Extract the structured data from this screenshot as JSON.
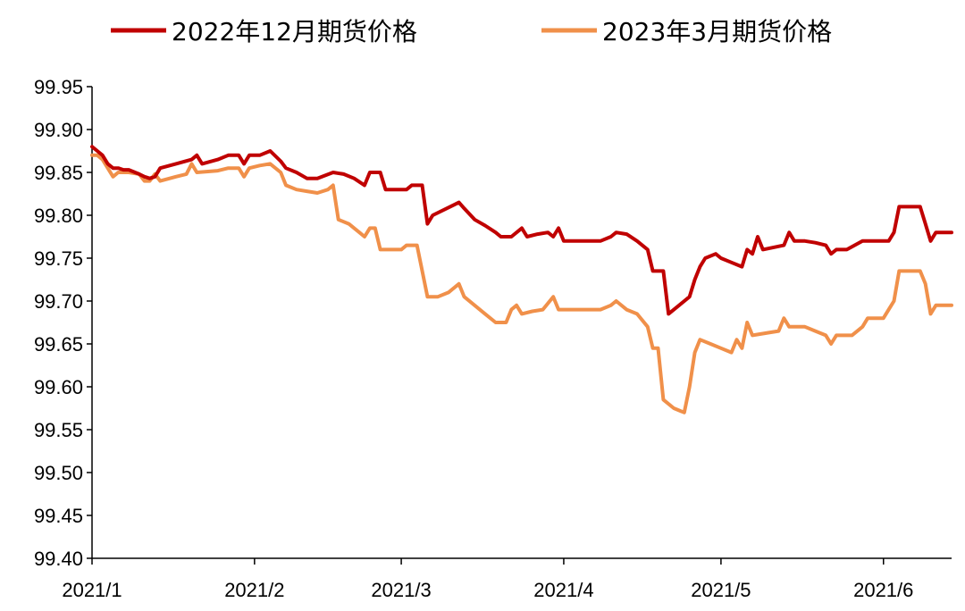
{
  "chart_data": {
    "type": "line",
    "title": "",
    "xlabel": "",
    "ylabel": "",
    "ylim": [
      99.4,
      99.95
    ],
    "y_ticks": [
      "99.40",
      "99.45",
      "99.50",
      "99.55",
      "99.60",
      "99.65",
      "99.70",
      "99.75",
      "99.80",
      "99.85",
      "99.90",
      "99.95"
    ],
    "x_ticks": [
      "2021/1",
      "2021/2",
      "2021/3",
      "2021/4",
      "2021/5",
      "2021/6"
    ],
    "xlim": [
      "2021-01-01",
      "2021-06-14"
    ],
    "grid": false,
    "legend_position": "top",
    "series": [
      {
        "name": "2022年12月期货价格",
        "color": "#c00000",
        "points": [
          [
            "2021-01-01",
            99.88
          ],
          [
            "2021-01-02",
            99.875
          ],
          [
            "2021-01-03",
            99.87
          ],
          [
            "2021-01-04",
            99.86
          ],
          [
            "2021-01-05",
            99.855
          ],
          [
            "2021-01-06",
            99.855
          ],
          [
            "2021-01-07",
            99.853
          ],
          [
            "2021-01-08",
            99.853
          ],
          [
            "2021-01-10",
            99.848
          ],
          [
            "2021-01-11",
            99.845
          ],
          [
            "2021-01-12",
            99.843
          ],
          [
            "2021-01-13",
            99.845
          ],
          [
            "2021-01-14",
            99.855
          ],
          [
            "2021-01-17",
            99.86
          ],
          [
            "2021-01-20",
            99.865
          ],
          [
            "2021-01-21",
            99.87
          ],
          [
            "2021-01-22",
            99.86
          ],
          [
            "2021-01-25",
            99.865
          ],
          [
            "2021-01-27",
            99.87
          ],
          [
            "2021-01-29",
            99.87
          ],
          [
            "2021-01-30",
            99.86
          ],
          [
            "2021-01-31",
            99.87
          ],
          [
            "2021-02-02",
            99.87
          ],
          [
            "2021-02-04",
            99.875
          ],
          [
            "2021-02-06",
            99.863
          ],
          [
            "2021-02-07",
            99.855
          ],
          [
            "2021-02-09",
            99.85
          ],
          [
            "2021-02-11",
            99.843
          ],
          [
            "2021-02-13",
            99.843
          ],
          [
            "2021-02-16",
            99.85
          ],
          [
            "2021-02-18",
            99.848
          ],
          [
            "2021-02-20",
            99.843
          ],
          [
            "2021-02-22",
            99.835
          ],
          [
            "2021-02-23",
            99.85
          ],
          [
            "2021-02-25",
            99.85
          ],
          [
            "2021-02-26",
            99.83
          ],
          [
            "2021-03-01",
            99.83
          ],
          [
            "2021-03-02",
            99.83
          ],
          [
            "2021-03-03",
            99.835
          ],
          [
            "2021-03-05",
            99.835
          ],
          [
            "2021-03-06",
            99.79
          ],
          [
            "2021-03-07",
            99.8
          ],
          [
            "2021-03-12",
            99.815
          ],
          [
            "2021-03-13",
            99.808
          ],
          [
            "2021-03-15",
            99.795
          ],
          [
            "2021-03-17",
            99.788
          ],
          [
            "2021-03-19",
            99.78
          ],
          [
            "2021-03-20",
            99.775
          ],
          [
            "2021-03-22",
            99.775
          ],
          [
            "2021-03-24",
            99.785
          ],
          [
            "2021-03-25",
            99.775
          ],
          [
            "2021-03-27",
            99.778
          ],
          [
            "2021-03-29",
            99.78
          ],
          [
            "2021-03-30",
            99.775
          ],
          [
            "2021-03-31",
            99.785
          ],
          [
            "2021-04-01",
            99.77
          ],
          [
            "2021-04-02",
            99.77
          ],
          [
            "2021-04-06",
            99.77
          ],
          [
            "2021-04-08",
            99.77
          ],
          [
            "2021-04-10",
            99.775
          ],
          [
            "2021-04-11",
            99.78
          ],
          [
            "2021-04-13",
            99.778
          ],
          [
            "2021-04-15",
            99.77
          ],
          [
            "2021-04-17",
            99.76
          ],
          [
            "2021-04-18",
            99.735
          ],
          [
            "2021-04-19",
            99.735
          ],
          [
            "2021-04-20",
            99.735
          ],
          [
            "2021-04-21",
            99.685
          ],
          [
            "2021-04-23",
            99.695
          ],
          [
            "2021-04-25",
            99.705
          ],
          [
            "2021-04-26",
            99.725
          ],
          [
            "2021-04-27",
            99.74
          ],
          [
            "2021-04-28",
            99.75
          ],
          [
            "2021-04-30",
            99.755
          ],
          [
            "2021-05-01",
            99.75
          ],
          [
            "2021-05-03",
            99.745
          ],
          [
            "2021-05-05",
            99.74
          ],
          [
            "2021-05-06",
            99.76
          ],
          [
            "2021-05-07",
            99.755
          ],
          [
            "2021-05-08",
            99.775
          ],
          [
            "2021-05-09",
            99.76
          ],
          [
            "2021-05-13",
            99.765
          ],
          [
            "2021-05-14",
            99.78
          ],
          [
            "2021-05-15",
            99.77
          ],
          [
            "2021-05-17",
            99.77
          ],
          [
            "2021-05-19",
            99.768
          ],
          [
            "2021-05-21",
            99.765
          ],
          [
            "2021-05-22",
            99.755
          ],
          [
            "2021-05-23",
            99.76
          ],
          [
            "2021-05-25",
            99.76
          ],
          [
            "2021-05-28",
            99.77
          ],
          [
            "2021-05-31",
            99.77
          ],
          [
            "2021-06-02",
            99.77
          ],
          [
            "2021-06-03",
            99.78
          ],
          [
            "2021-06-04",
            99.81
          ],
          [
            "2021-06-06",
            99.81
          ],
          [
            "2021-06-08",
            99.81
          ],
          [
            "2021-06-09",
            99.79
          ],
          [
            "2021-06-10",
            99.77
          ],
          [
            "2021-06-11",
            99.78
          ],
          [
            "2021-06-12",
            99.78
          ],
          [
            "2021-06-14",
            99.78
          ]
        ]
      },
      {
        "name": "2023年3月期货价格",
        "color": "#f0904a",
        "points": [
          [
            "2021-01-01",
            99.87
          ],
          [
            "2021-01-02",
            99.87
          ],
          [
            "2021-01-03",
            99.865
          ],
          [
            "2021-01-04",
            99.855
          ],
          [
            "2021-01-05",
            99.845
          ],
          [
            "2021-01-06",
            99.85
          ],
          [
            "2021-01-08",
            99.85
          ],
          [
            "2021-01-10",
            99.848
          ],
          [
            "2021-01-11",
            99.84
          ],
          [
            "2021-01-12",
            99.84
          ],
          [
            "2021-01-13",
            99.848
          ],
          [
            "2021-01-14",
            99.84
          ],
          [
            "2021-01-17",
            99.845
          ],
          [
            "2021-01-19",
            99.848
          ],
          [
            "2021-01-20",
            99.86
          ],
          [
            "2021-01-21",
            99.85
          ],
          [
            "2021-01-25",
            99.852
          ],
          [
            "2021-01-27",
            99.855
          ],
          [
            "2021-01-29",
            99.855
          ],
          [
            "2021-01-30",
            99.845
          ],
          [
            "2021-01-31",
            99.855
          ],
          [
            "2021-02-02",
            99.858
          ],
          [
            "2021-02-04",
            99.86
          ],
          [
            "2021-02-06",
            99.85
          ],
          [
            "2021-02-07",
            99.835
          ],
          [
            "2021-02-09",
            99.83
          ],
          [
            "2021-02-11",
            99.828
          ],
          [
            "2021-02-13",
            99.826
          ],
          [
            "2021-02-15",
            99.83
          ],
          [
            "2021-02-16",
            99.835
          ],
          [
            "2021-02-17",
            99.795
          ],
          [
            "2021-02-19",
            99.79
          ],
          [
            "2021-02-21",
            99.78
          ],
          [
            "2021-02-22",
            99.775
          ],
          [
            "2021-02-23",
            99.785
          ],
          [
            "2021-02-24",
            99.785
          ],
          [
            "2021-02-25",
            99.76
          ],
          [
            "2021-02-27",
            99.76
          ],
          [
            "2021-03-01",
            99.76
          ],
          [
            "2021-03-02",
            99.765
          ],
          [
            "2021-03-04",
            99.765
          ],
          [
            "2021-03-06",
            99.705
          ],
          [
            "2021-03-08",
            99.705
          ],
          [
            "2021-03-10",
            99.71
          ],
          [
            "2021-03-12",
            99.72
          ],
          [
            "2021-03-13",
            99.705
          ],
          [
            "2021-03-15",
            99.695
          ],
          [
            "2021-03-17",
            99.685
          ],
          [
            "2021-03-19",
            99.675
          ],
          [
            "2021-03-21",
            99.675
          ],
          [
            "2021-03-22",
            99.69
          ],
          [
            "2021-03-23",
            99.695
          ],
          [
            "2021-03-24",
            99.685
          ],
          [
            "2021-03-26",
            99.688
          ],
          [
            "2021-03-28",
            99.69
          ],
          [
            "2021-03-30",
            99.705
          ],
          [
            "2021-03-31",
            99.69
          ],
          [
            "2021-04-02",
            99.69
          ],
          [
            "2021-04-06",
            99.69
          ],
          [
            "2021-04-08",
            99.69
          ],
          [
            "2021-04-10",
            99.695
          ],
          [
            "2021-04-11",
            99.7
          ],
          [
            "2021-04-13",
            99.69
          ],
          [
            "2021-04-15",
            99.685
          ],
          [
            "2021-04-17",
            99.67
          ],
          [
            "2021-04-18",
            99.645
          ],
          [
            "2021-04-19",
            99.645
          ],
          [
            "2021-04-20",
            99.585
          ],
          [
            "2021-04-22",
            99.575
          ],
          [
            "2021-04-24",
            99.57
          ],
          [
            "2021-04-25",
            99.6
          ],
          [
            "2021-04-26",
            99.64
          ],
          [
            "2021-04-27",
            99.655
          ],
          [
            "2021-04-29",
            99.65
          ],
          [
            "2021-05-01",
            99.645
          ],
          [
            "2021-05-03",
            99.64
          ],
          [
            "2021-05-04",
            99.655
          ],
          [
            "2021-05-05",
            99.645
          ],
          [
            "2021-05-06",
            99.675
          ],
          [
            "2021-05-07",
            99.66
          ],
          [
            "2021-05-10",
            99.663
          ],
          [
            "2021-05-12",
            99.665
          ],
          [
            "2021-05-13",
            99.68
          ],
          [
            "2021-05-14",
            99.67
          ],
          [
            "2021-05-17",
            99.67
          ],
          [
            "2021-05-19",
            99.665
          ],
          [
            "2021-05-21",
            99.66
          ],
          [
            "2021-05-22",
            99.65
          ],
          [
            "2021-05-23",
            99.66
          ],
          [
            "2021-05-26",
            99.66
          ],
          [
            "2021-05-28",
            99.67
          ],
          [
            "2021-05-29",
            99.68
          ],
          [
            "2021-06-01",
            99.68
          ],
          [
            "2021-06-02",
            99.69
          ],
          [
            "2021-06-03",
            99.7
          ],
          [
            "2021-06-04",
            99.735
          ],
          [
            "2021-06-06",
            99.735
          ],
          [
            "2021-06-08",
            99.735
          ],
          [
            "2021-06-09",
            99.72
          ],
          [
            "2021-06-10",
            99.685
          ],
          [
            "2021-06-11",
            99.695
          ],
          [
            "2021-06-12",
            99.695
          ],
          [
            "2021-06-14",
            99.695
          ]
        ]
      }
    ]
  }
}
